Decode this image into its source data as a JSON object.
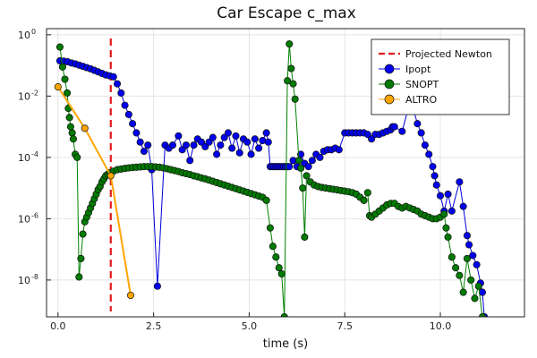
{
  "chart_data": {
    "type": "scatter",
    "title": "Car Escape c_max",
    "xlabel": "time (s)",
    "ylabel": "",
    "xlim": [
      -0.3,
      12.2
    ],
    "ylim_log10": [
      -9.2,
      0.2
    ],
    "yscale": "log10",
    "grid": true,
    "legend_position": "top-right",
    "x_ticks": [
      0.0,
      2.5,
      5.0,
      7.5,
      10.0
    ],
    "x_tick_labels": [
      "0.0",
      "2.5",
      "5.0",
      "7.5",
      "10.0"
    ],
    "y_ticks_log10": [
      0,
      -2,
      -4,
      -6,
      -8
    ],
    "y_tick_labels": [
      {
        "base": "10",
        "exp": "0"
      },
      {
        "base": "10",
        "exp": "-2"
      },
      {
        "base": "10",
        "exp": "-4"
      },
      {
        "base": "10",
        "exp": "-6"
      },
      {
        "base": "10",
        "exp": "-8"
      }
    ],
    "vline": {
      "name": "Projected Newton",
      "x": 1.38,
      "color": "#e41a1c"
    },
    "series": [
      {
        "name": "Ipopt",
        "color": "#0000dd",
        "marker_color": "#0000ee",
        "points": [
          [
            0.05,
            -0.85
          ],
          [
            0.15,
            -0.86
          ],
          [
            0.25,
            -0.88
          ],
          [
            0.35,
            -0.92
          ],
          [
            0.45,
            -0.95
          ],
          [
            0.55,
            -0.99
          ],
          [
            0.65,
            -1.03
          ],
          [
            0.75,
            -1.07
          ],
          [
            0.85,
            -1.11
          ],
          [
            0.95,
            -1.16
          ],
          [
            1.05,
            -1.21
          ],
          [
            1.15,
            -1.26
          ],
          [
            1.25,
            -1.31
          ],
          [
            1.35,
            -1.34
          ],
          [
            1.45,
            -1.37
          ],
          [
            1.55,
            -1.6
          ],
          [
            1.65,
            -1.9
          ],
          [
            1.75,
            -2.3
          ],
          [
            1.85,
            -2.6
          ],
          [
            1.95,
            -2.9
          ],
          [
            2.05,
            -3.2
          ],
          [
            2.15,
            -3.5
          ],
          [
            2.25,
            -3.8
          ],
          [
            2.35,
            -3.6
          ],
          [
            2.45,
            -4.4
          ],
          [
            2.6,
            -8.2
          ],
          [
            2.8,
            -3.6
          ],
          [
            2.9,
            -3.7
          ],
          [
            3.0,
            -3.6
          ],
          [
            3.15,
            -3.3
          ],
          [
            3.25,
            -3.75
          ],
          [
            3.35,
            -3.6
          ],
          [
            3.45,
            -4.1
          ],
          [
            3.55,
            -3.6
          ],
          [
            3.65,
            -3.4
          ],
          [
            3.75,
            -3.5
          ],
          [
            3.85,
            -3.65
          ],
          [
            3.95,
            -3.5
          ],
          [
            4.05,
            -3.35
          ],
          [
            4.15,
            -3.9
          ],
          [
            4.25,
            -3.6
          ],
          [
            4.35,
            -3.35
          ],
          [
            4.45,
            -3.2
          ],
          [
            4.55,
            -3.7
          ],
          [
            4.65,
            -3.3
          ],
          [
            4.75,
            -3.85
          ],
          [
            4.85,
            -3.4
          ],
          [
            4.95,
            -3.5
          ],
          [
            5.05,
            -3.9
          ],
          [
            5.15,
            -3.4
          ],
          [
            5.25,
            -3.7
          ],
          [
            5.35,
            -3.45
          ],
          [
            5.45,
            -3.2
          ],
          [
            5.5,
            -3.5
          ],
          [
            5.55,
            -4.3
          ],
          [
            5.6,
            -4.3
          ],
          [
            5.65,
            -4.3
          ],
          [
            5.7,
            -4.3
          ],
          [
            5.75,
            -4.3
          ],
          [
            5.8,
            -4.3
          ],
          [
            5.85,
            -4.3
          ],
          [
            5.9,
            -4.3
          ],
          [
            5.95,
            -4.3
          ],
          [
            6.0,
            -4.3
          ],
          [
            6.05,
            -4.3
          ],
          [
            6.15,
            -4.1
          ],
          [
            6.25,
            -4.3
          ],
          [
            6.35,
            -3.9
          ],
          [
            6.45,
            -4.2
          ],
          [
            6.55,
            -4.3
          ],
          [
            6.65,
            -4.1
          ],
          [
            6.75,
            -3.9
          ],
          [
            6.85,
            -4.0
          ],
          [
            6.95,
            -3.8
          ],
          [
            7.05,
            -3.75
          ],
          [
            7.15,
            -3.75
          ],
          [
            7.25,
            -3.7
          ],
          [
            7.35,
            -3.75
          ],
          [
            7.5,
            -3.2
          ],
          [
            7.6,
            -3.2
          ],
          [
            7.7,
            -3.2
          ],
          [
            7.8,
            -3.2
          ],
          [
            7.9,
            -3.2
          ],
          [
            8.0,
            -3.2
          ],
          [
            8.1,
            -3.25
          ],
          [
            8.2,
            -3.4
          ],
          [
            8.3,
            -3.25
          ],
          [
            8.4,
            -3.25
          ],
          [
            8.5,
            -3.2
          ],
          [
            8.6,
            -3.15
          ],
          [
            8.7,
            -3.1
          ],
          [
            8.75,
            -3.0
          ],
          [
            8.8,
            -3.0
          ],
          [
            9.0,
            -3.15
          ],
          [
            9.15,
            -2.45
          ],
          [
            9.3,
            -2.45
          ],
          [
            9.4,
            -2.9
          ],
          [
            9.5,
            -3.2
          ],
          [
            9.6,
            -3.6
          ],
          [
            9.7,
            -3.9
          ],
          [
            9.8,
            -4.3
          ],
          [
            9.85,
            -4.6
          ],
          [
            9.9,
            -4.9
          ],
          [
            10.0,
            -5.25
          ],
          [
            10.1,
            -5.75
          ],
          [
            10.2,
            -5.2
          ],
          [
            10.3,
            -5.75
          ],
          [
            10.5,
            -4.8
          ],
          [
            10.6,
            -5.6
          ],
          [
            10.7,
            -6.55
          ],
          [
            10.75,
            -6.85
          ],
          [
            10.85,
            -7.2
          ],
          [
            10.95,
            -7.5
          ],
          [
            11.05,
            -8.1
          ],
          [
            11.1,
            -8.4
          ],
          [
            11.15,
            -9.2
          ]
        ]
      },
      {
        "name": "SNOPT",
        "color": "#008000",
        "marker_color": "#007a00",
        "points": [
          [
            0.05,
            -0.4
          ],
          [
            0.12,
            -1.05
          ],
          [
            0.18,
            -1.45
          ],
          [
            0.24,
            -1.9
          ],
          [
            0.27,
            -2.4
          ],
          [
            0.3,
            -2.7
          ],
          [
            0.33,
            -3.0
          ],
          [
            0.37,
            -3.2
          ],
          [
            0.4,
            -3.4
          ],
          [
            0.45,
            -3.9
          ],
          [
            0.5,
            -4.0
          ],
          [
            0.55,
            -7.9
          ],
          [
            0.6,
            -7.3
          ],
          [
            0.65,
            -6.5
          ],
          [
            0.7,
            -6.1
          ],
          [
            0.75,
            -5.95
          ],
          [
            0.8,
            -5.8
          ],
          [
            0.85,
            -5.65
          ],
          [
            0.9,
            -5.5
          ],
          [
            0.95,
            -5.35
          ],
          [
            1.0,
            -5.2
          ],
          [
            1.05,
            -5.05
          ],
          [
            1.1,
            -4.95
          ],
          [
            1.15,
            -4.8
          ],
          [
            1.2,
            -4.7
          ],
          [
            1.25,
            -4.6
          ],
          [
            1.3,
            -4.55
          ],
          [
            1.35,
            -4.5
          ],
          [
            1.45,
            -4.45
          ],
          [
            1.55,
            -4.4
          ],
          [
            1.65,
            -4.38
          ],
          [
            1.75,
            -4.36
          ],
          [
            1.85,
            -4.34
          ],
          [
            1.95,
            -4.33
          ],
          [
            2.05,
            -4.32
          ],
          [
            2.15,
            -4.31
          ],
          [
            2.25,
            -4.3
          ],
          [
            2.35,
            -4.3
          ],
          [
            2.45,
            -4.3
          ],
          [
            2.55,
            -4.31
          ],
          [
            2.65,
            -4.32
          ],
          [
            2.75,
            -4.34
          ],
          [
            2.85,
            -4.37
          ],
          [
            2.95,
            -4.4
          ],
          [
            3.05,
            -4.43
          ],
          [
            3.15,
            -4.46
          ],
          [
            3.25,
            -4.5
          ],
          [
            3.35,
            -4.53
          ],
          [
            3.45,
            -4.56
          ],
          [
            3.55,
            -4.6
          ],
          [
            3.65,
            -4.63
          ],
          [
            3.75,
            -4.67
          ],
          [
            3.85,
            -4.7
          ],
          [
            3.95,
            -4.74
          ],
          [
            4.05,
            -4.78
          ],
          [
            4.15,
            -4.82
          ],
          [
            4.25,
            -4.86
          ],
          [
            4.35,
            -4.9
          ],
          [
            4.45,
            -4.94
          ],
          [
            4.55,
            -4.98
          ],
          [
            4.65,
            -5.02
          ],
          [
            4.75,
            -5.06
          ],
          [
            4.85,
            -5.1
          ],
          [
            4.95,
            -5.14
          ],
          [
            5.05,
            -5.18
          ],
          [
            5.15,
            -5.22
          ],
          [
            5.25,
            -5.26
          ],
          [
            5.35,
            -5.3
          ],
          [
            5.45,
            -5.4
          ],
          [
            5.55,
            -6.3
          ],
          [
            5.62,
            -6.9
          ],
          [
            5.7,
            -7.25
          ],
          [
            5.78,
            -7.6
          ],
          [
            5.85,
            -7.8
          ],
          [
            5.92,
            -9.2
          ],
          [
            6.0,
            -1.5
          ],
          [
            6.05,
            -0.3
          ],
          [
            6.1,
            -1.1
          ],
          [
            6.15,
            -1.6
          ],
          [
            6.2,
            -2.1
          ],
          [
            6.3,
            -4.1
          ],
          [
            6.35,
            -4.35
          ],
          [
            6.4,
            -5.0
          ],
          [
            6.45,
            -6.6
          ],
          [
            6.5,
            -4.6
          ],
          [
            6.6,
            -4.8
          ],
          [
            6.7,
            -4.9
          ],
          [
            6.8,
            -4.95
          ],
          [
            6.9,
            -4.98
          ],
          [
            7.0,
            -5.0
          ],
          [
            7.1,
            -5.02
          ],
          [
            7.2,
            -5.04
          ],
          [
            7.3,
            -5.06
          ],
          [
            7.4,
            -5.08
          ],
          [
            7.5,
            -5.1
          ],
          [
            7.6,
            -5.12
          ],
          [
            7.7,
            -5.15
          ],
          [
            7.8,
            -5.2
          ],
          [
            7.9,
            -5.3
          ],
          [
            8.0,
            -5.4
          ],
          [
            8.1,
            -5.15
          ],
          [
            8.15,
            -5.9
          ],
          [
            8.2,
            -5.95
          ],
          [
            8.3,
            -5.85
          ],
          [
            8.4,
            -5.75
          ],
          [
            8.5,
            -5.65
          ],
          [
            8.6,
            -5.55
          ],
          [
            8.7,
            -5.5
          ],
          [
            8.8,
            -5.5
          ],
          [
            8.9,
            -5.6
          ],
          [
            9.0,
            -5.65
          ],
          [
            9.1,
            -5.6
          ],
          [
            9.2,
            -5.65
          ],
          [
            9.3,
            -5.7
          ],
          [
            9.4,
            -5.75
          ],
          [
            9.5,
            -5.85
          ],
          [
            9.6,
            -5.9
          ],
          [
            9.7,
            -5.95
          ],
          [
            9.8,
            -6.0
          ],
          [
            9.9,
            -6.0
          ],
          [
            10.0,
            -5.95
          ],
          [
            10.1,
            -5.85
          ],
          [
            10.15,
            -6.3
          ],
          [
            10.2,
            -6.6
          ],
          [
            10.3,
            -7.25
          ],
          [
            10.4,
            -7.6
          ],
          [
            10.5,
            -7.85
          ],
          [
            10.6,
            -8.4
          ],
          [
            10.7,
            -7.3
          ],
          [
            10.8,
            -8.0
          ],
          [
            10.9,
            -8.6
          ],
          [
            11.0,
            -8.2
          ],
          [
            11.1,
            -9.2
          ]
        ]
      },
      {
        "name": "ALTRO",
        "color": "#ffa500",
        "marker_color": "#ffa500",
        "points": [
          [
            0.0,
            -1.7
          ],
          [
            0.7,
            -3.05
          ],
          [
            1.38,
            -4.6
          ],
          [
            1.9,
            -8.5
          ]
        ]
      }
    ]
  }
}
